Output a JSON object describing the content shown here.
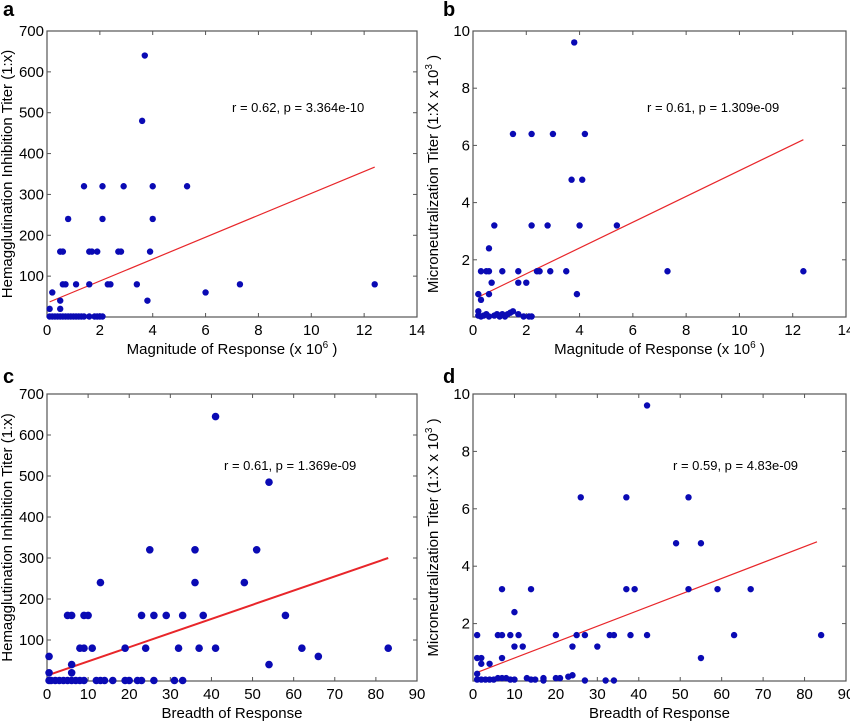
{
  "chart_data": [
    {
      "panel": "a",
      "type": "scatter",
      "title": "",
      "xlabel": "Magnitude of Response (x 10",
      "xlabel_sup": "6",
      "xlabel_end": ")",
      "ylabel": "Hemagglutination Inhibition Titer (1:x)",
      "xlim": [
        0,
        14
      ],
      "ylim": [
        0,
        700
      ],
      "xticks": [
        0,
        2,
        4,
        6,
        8,
        10,
        12,
        14
      ],
      "yticks": [
        100,
        200,
        300,
        400,
        500,
        600,
        700
      ],
      "ytick_labels": [
        "100",
        "200",
        "300",
        "400",
        "500",
        "600",
        "700"
      ],
      "xtick_labels": [
        "0",
        "2",
        "4",
        "6",
        "8",
        "10",
        "12",
        "14"
      ],
      "annotation": "r = 0.62, p = 3.364e-10",
      "fit_line": {
        "x": [
          0.1,
          12.4
        ],
        "y": [
          37,
          367
        ]
      },
      "points": [
        [
          0.1,
          20
        ],
        [
          0.2,
          60
        ],
        [
          0.5,
          40
        ],
        [
          0.5,
          20
        ],
        [
          0.5,
          160
        ],
        [
          0.6,
          160
        ],
        [
          0.6,
          80
        ],
        [
          0.7,
          80
        ],
        [
          0.8,
          240
        ],
        [
          1.1,
          80
        ],
        [
          1.4,
          320
        ],
        [
          1.6,
          80
        ],
        [
          1.6,
          160
        ],
        [
          1.7,
          160
        ],
        [
          1.9,
          160
        ],
        [
          2.1,
          320
        ],
        [
          2.1,
          240
        ],
        [
          2.3,
          80
        ],
        [
          2.4,
          80
        ],
        [
          2.7,
          160
        ],
        [
          2.8,
          160
        ],
        [
          2.9,
          320
        ],
        [
          3.4,
          80
        ],
        [
          3.6,
          480
        ],
        [
          3.7,
          640
        ],
        [
          3.8,
          40
        ],
        [
          3.9,
          160
        ],
        [
          4.0,
          240
        ],
        [
          4.0,
          320
        ],
        [
          5.3,
          320
        ],
        [
          6.0,
          60
        ],
        [
          7.3,
          80
        ],
        [
          12.4,
          80
        ],
        [
          0.1,
          0
        ],
        [
          0.2,
          0
        ],
        [
          0.3,
          0
        ],
        [
          0.4,
          0
        ],
        [
          0.5,
          0
        ],
        [
          0.6,
          0
        ],
        [
          0.7,
          0
        ],
        [
          0.8,
          0
        ],
        [
          0.9,
          0
        ],
        [
          1.0,
          0
        ],
        [
          1.1,
          0
        ],
        [
          1.2,
          0
        ],
        [
          1.3,
          0
        ],
        [
          1.4,
          0
        ],
        [
          1.6,
          0
        ],
        [
          1.8,
          0
        ],
        [
          1.9,
          0
        ],
        [
          2.0,
          0
        ],
        [
          2.1,
          0
        ]
      ]
    },
    {
      "panel": "b",
      "type": "scatter",
      "title": "",
      "xlabel": "Magnitude of Response (x 10",
      "xlabel_sup": "6",
      "xlabel_end": ")",
      "ylabel": "Microneutralization Titer (1:X x 10",
      "ylabel_sup": "3",
      "ylabel_end": ")",
      "xlim": [
        0,
        14
      ],
      "ylim": [
        0,
        10
      ],
      "xticks": [
        0,
        2,
        4,
        6,
        8,
        10,
        12,
        14
      ],
      "yticks": [
        2,
        4,
        6,
        8,
        10
      ],
      "ytick_labels": [
        "2",
        "4",
        "6",
        "8",
        "10"
      ],
      "xtick_labels": [
        "0",
        "2",
        "4",
        "6",
        "8",
        "10",
        "12",
        "14"
      ],
      "annotation": "r = 0.61, p = 1.309e-09",
      "fit_line": {
        "x": [
          0.2,
          12.4
        ],
        "y": [
          0.7,
          6.2
        ]
      },
      "points": [
        [
          0.2,
          0.8
        ],
        [
          0.2,
          0.2
        ],
        [
          0.3,
          1.6
        ],
        [
          0.3,
          0.6
        ],
        [
          0.5,
          1.6
        ],
        [
          0.6,
          2.4
        ],
        [
          0.6,
          1.6
        ],
        [
          0.6,
          0.8
        ],
        [
          0.7,
          1.2
        ],
        [
          0.8,
          3.2
        ],
        [
          1.1,
          1.6
        ],
        [
          1.5,
          6.4
        ],
        [
          1.7,
          1.6
        ],
        [
          1.7,
          1.2
        ],
        [
          2.0,
          1.2
        ],
        [
          2.2,
          6.4
        ],
        [
          2.2,
          3.2
        ],
        [
          2.4,
          1.6
        ],
        [
          2.5,
          1.6
        ],
        [
          2.8,
          3.2
        ],
        [
          2.9,
          1.6
        ],
        [
          3.0,
          6.4
        ],
        [
          3.5,
          1.6
        ],
        [
          3.7,
          4.8
        ],
        [
          3.8,
          9.6
        ],
        [
          3.9,
          0.8
        ],
        [
          4.0,
          3.2
        ],
        [
          4.1,
          4.8
        ],
        [
          4.2,
          6.4
        ],
        [
          5.4,
          3.2
        ],
        [
          7.3,
          1.6
        ],
        [
          12.4,
          1.6
        ],
        [
          0.2,
          0.05
        ],
        [
          0.3,
          0.0
        ],
        [
          0.4,
          0.05
        ],
        [
          0.5,
          0.1
        ],
        [
          0.6,
          0.0
        ],
        [
          0.8,
          0.05
        ],
        [
          0.9,
          0.1
        ],
        [
          1.0,
          0.0
        ],
        [
          1.1,
          0.1
        ],
        [
          1.2,
          0.0
        ],
        [
          1.3,
          0.1
        ],
        [
          1.4,
          0.15
        ],
        [
          1.5,
          0.2
        ],
        [
          1.7,
          0.1
        ],
        [
          1.9,
          0.0
        ],
        [
          2.1,
          0.0
        ],
        [
          2.2,
          0.0
        ]
      ]
    },
    {
      "panel": "c",
      "type": "scatter",
      "title": "",
      "xlabel": "Breadth of Response",
      "ylabel": "Hemagglutination Inhibition Titer (1:x)",
      "xlim": [
        0,
        90
      ],
      "ylim": [
        0,
        700
      ],
      "xticks": [
        0,
        10,
        20,
        30,
        40,
        50,
        60,
        70,
        80,
        90
      ],
      "yticks": [
        100,
        200,
        300,
        400,
        500,
        600,
        700
      ],
      "ytick_labels": [
        "100",
        "200",
        "300",
        "400",
        "500",
        "600",
        "700"
      ],
      "xtick_labels": [
        "0",
        "10",
        "20",
        "30",
        "40",
        "50",
        "60",
        "70",
        "80",
        "90"
      ],
      "annotation": "r = 0.61, p = 1.369e-09",
      "fit_line": {
        "x": [
          0.5,
          83
        ],
        "y": [
          15,
          300
        ]
      },
      "points": [
        [
          0.5,
          60
        ],
        [
          0.5,
          20
        ],
        [
          5,
          160
        ],
        [
          6,
          160
        ],
        [
          6,
          40
        ],
        [
          6,
          20
        ],
        [
          8,
          80
        ],
        [
          9,
          80
        ],
        [
          9,
          160
        ],
        [
          10,
          160
        ],
        [
          11,
          80
        ],
        [
          13,
          240
        ],
        [
          19,
          80
        ],
        [
          23,
          160
        ],
        [
          24,
          80
        ],
        [
          25,
          320
        ],
        [
          26,
          160
        ],
        [
          29,
          160
        ],
        [
          32,
          80
        ],
        [
          33,
          160
        ],
        [
          36,
          320
        ],
        [
          36,
          240
        ],
        [
          37,
          80
        ],
        [
          38,
          160
        ],
        [
          41,
          80
        ],
        [
          41,
          645
        ],
        [
          48,
          240
        ],
        [
          51,
          320
        ],
        [
          54,
          485
        ],
        [
          54,
          40
        ],
        [
          58,
          160
        ],
        [
          62,
          80
        ],
        [
          66,
          60
        ],
        [
          83,
          80
        ],
        [
          0.5,
          0
        ],
        [
          1,
          0
        ],
        [
          2,
          0
        ],
        [
          3,
          0
        ],
        [
          4,
          0
        ],
        [
          5,
          0
        ],
        [
          6,
          0
        ],
        [
          7,
          0
        ],
        [
          8,
          0
        ],
        [
          9,
          0
        ],
        [
          12,
          0
        ],
        [
          13,
          0
        ],
        [
          14,
          0
        ],
        [
          16,
          0
        ],
        [
          19,
          0
        ],
        [
          20,
          0
        ],
        [
          22,
          0
        ],
        [
          23,
          0
        ],
        [
          26,
          0
        ],
        [
          31,
          0
        ],
        [
          33,
          0
        ]
      ]
    },
    {
      "panel": "d",
      "type": "scatter",
      "title": "",
      "xlabel": "Breadth of Response",
      "ylabel": "Microneutralization Titer (1:X x 10",
      "ylabel_sup": "3",
      "ylabel_end": ")",
      "xlim": [
        0,
        90
      ],
      "ylim": [
        0,
        10
      ],
      "xticks": [
        0,
        10,
        20,
        30,
        40,
        50,
        60,
        70,
        80,
        90
      ],
      "yticks": [
        2,
        4,
        6,
        8,
        10
      ],
      "ytick_labels": [
        "2",
        "4",
        "6",
        "8",
        "10"
      ],
      "xtick_labels": [
        "0",
        "10",
        "20",
        "30",
        "40",
        "50",
        "60",
        "70",
        "80",
        "90"
      ],
      "annotation": "r = 0.59, p = 4.83e-09",
      "fit_line": {
        "x": [
          1,
          83
        ],
        "y": [
          0.3,
          4.85
        ]
      },
      "points": [
        [
          1,
          1.6
        ],
        [
          1,
          0.8
        ],
        [
          1,
          0.25
        ],
        [
          2,
          0.8
        ],
        [
          2,
          0.6
        ],
        [
          4,
          0.6
        ],
        [
          6,
          1.6
        ],
        [
          7,
          1.6
        ],
        [
          7,
          0.8
        ],
        [
          7,
          3.2
        ],
        [
          9,
          1.6
        ],
        [
          10,
          2.4
        ],
        [
          10,
          1.2
        ],
        [
          11,
          1.6
        ],
        [
          12,
          1.2
        ],
        [
          14,
          3.2
        ],
        [
          20,
          1.6
        ],
        [
          24,
          1.2
        ],
        [
          25,
          1.6
        ],
        [
          26,
          6.4
        ],
        [
          27,
          1.6
        ],
        [
          30,
          1.2
        ],
        [
          33,
          1.6
        ],
        [
          34,
          1.6
        ],
        [
          37,
          6.4
        ],
        [
          37,
          3.2
        ],
        [
          38,
          1.6
        ],
        [
          39,
          3.2
        ],
        [
          42,
          1.6
        ],
        [
          42,
          9.6
        ],
        [
          49,
          4.8
        ],
        [
          52,
          6.4
        ],
        [
          52,
          3.2
        ],
        [
          55,
          4.8
        ],
        [
          55,
          0.8
        ],
        [
          59,
          3.2
        ],
        [
          63,
          1.6
        ],
        [
          67,
          3.2
        ],
        [
          84,
          1.6
        ],
        [
          1,
          0.05
        ],
        [
          2,
          0.05
        ],
        [
          3,
          0.05
        ],
        [
          4,
          0.05
        ],
        [
          5,
          0.05
        ],
        [
          6,
          0.1
        ],
        [
          7,
          0.1
        ],
        [
          8,
          0.1
        ],
        [
          9,
          0.05
        ],
        [
          10,
          0.05
        ],
        [
          13,
          0.1
        ],
        [
          14,
          0.05
        ],
        [
          15,
          0.05
        ],
        [
          17,
          0.1
        ],
        [
          17,
          0.0
        ],
        [
          20,
          0.1
        ],
        [
          21,
          0.1
        ],
        [
          23,
          0.15
        ],
        [
          24,
          0.2
        ],
        [
          27,
          0.0
        ],
        [
          32,
          0.0
        ],
        [
          34,
          0.0
        ]
      ]
    }
  ]
}
